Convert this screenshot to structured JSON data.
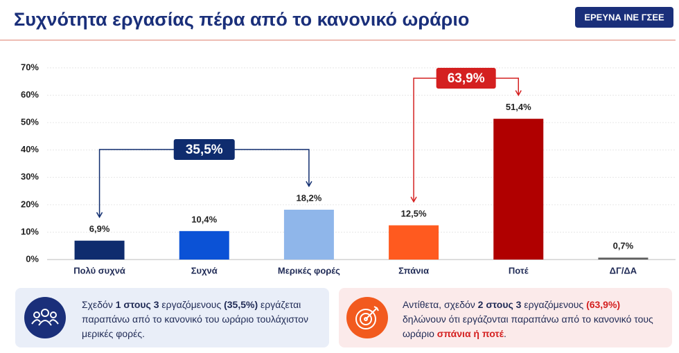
{
  "chart_data": {
    "type": "bar",
    "title": "Συχνότητα εργασίας πέρα από το κανονικό ωράριο",
    "badge": "ΕΡΕΥΝΑ ΙΝΕ ΓΣΕΕ",
    "categories": [
      "Πολύ συχνά",
      "Συχνά",
      "Μερικές φορές",
      "Σπάνια",
      "Ποτέ",
      "ΔΓ/ΔΑ"
    ],
    "values": [
      6.9,
      10.4,
      18.2,
      12.5,
      51.4,
      0.7
    ],
    "value_labels": [
      "6,9%",
      "10,4%",
      "18,2%",
      "12,5%",
      "51,4%",
      "0,7%"
    ],
    "colors": [
      "#0f2c6e",
      "#0b52d6",
      "#8fb6ea",
      "#ff5a1f",
      "#b00000",
      "#606060"
    ],
    "ylim": [
      0,
      70
    ],
    "yticks": [
      {
        "value": 0,
        "label": "0%"
      },
      {
        "value": 10,
        "label": "10%"
      },
      {
        "value": 20,
        "label": "20%"
      },
      {
        "value": 30,
        "label": "30%"
      },
      {
        "value": 40,
        "label": "40%"
      },
      {
        "value": 50,
        "label": "50%"
      },
      {
        "value": 60,
        "label": "60%"
      },
      {
        "value": 70,
        "label": "70%"
      }
    ],
    "grid": true,
    "annotations": [
      {
        "value": 35.5,
        "label": "35,5%",
        "color": "#0f2c6e"
      },
      {
        "value": 63.9,
        "label": "63,9%",
        "color": "#d42020"
      }
    ]
  },
  "notes": [
    {
      "parts": [
        {
          "text": "Σχεδόν "
        },
        {
          "text": "1 στους 3",
          "bold": true
        },
        {
          "text": " εργαζόμενους "
        },
        {
          "text": "(35,5%)",
          "bold": true
        },
        {
          "text": " εργάζεται παραπάνω από το κανονικό του ωράριο τουλάχιστον μερικές φορές."
        }
      ]
    },
    {
      "parts": [
        {
          "text": "Αντίθετα, σχεδόν "
        },
        {
          "text": "2 στους 3",
          "bold": true
        },
        {
          "text": " εργαζόμενους "
        },
        {
          "text": "(63,9%)",
          "bold": true,
          "color": "#d42020"
        },
        {
          "text": " δηλώνουν ότι εργάζονται παραπάνω από το κανονικό τους ωράριο "
        },
        {
          "text": "σπάνια ή ποτέ",
          "bold": true,
          "color": "#d42020"
        },
        {
          "text": "."
        }
      ]
    }
  ]
}
